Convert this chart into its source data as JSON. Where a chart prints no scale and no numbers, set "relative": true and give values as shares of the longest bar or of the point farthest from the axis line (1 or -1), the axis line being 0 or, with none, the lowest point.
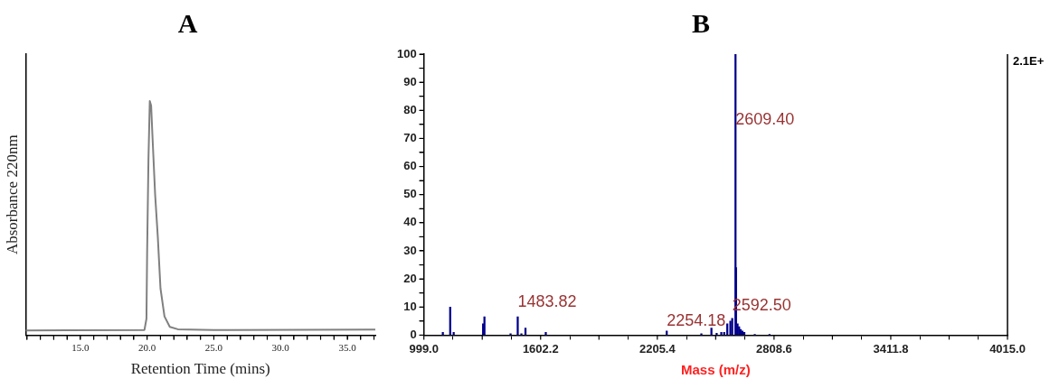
{
  "chart_data": [
    {
      "type": "line",
      "title": "A",
      "xlabel": "Retention Time (mins)",
      "ylabel": "Absorbance 220nm",
      "relative": true,
      "grid": false,
      "legend": false,
      "marker": "none",
      "xlim": [
        10.9,
        37.1
      ],
      "xticks": [
        {
          "value": 11,
          "label": null
        },
        {
          "value": 12,
          "label": null
        },
        {
          "value": 13,
          "label": null
        },
        {
          "value": 14,
          "label": null
        },
        {
          "value": 15,
          "label": "15.0"
        },
        {
          "value": 16,
          "label": null
        },
        {
          "value": 17,
          "label": null
        },
        {
          "value": 18,
          "label": null
        },
        {
          "value": 19,
          "label": null
        },
        {
          "value": 20,
          "label": "20.0"
        },
        {
          "value": 21,
          "label": null
        },
        {
          "value": 22,
          "label": null
        },
        {
          "value": 23,
          "label": null
        },
        {
          "value": 24,
          "label": null
        },
        {
          "value": 25,
          "label": "25.0"
        },
        {
          "value": 26,
          "label": null
        },
        {
          "value": 27,
          "label": null
        },
        {
          "value": 28,
          "label": null
        },
        {
          "value": 29,
          "label": null
        },
        {
          "value": 30,
          "label": "30.0"
        },
        {
          "value": 31,
          "label": null
        },
        {
          "value": 32,
          "label": null
        },
        {
          "value": 33,
          "label": null
        },
        {
          "value": 34,
          "label": null
        },
        {
          "value": 35,
          "label": "35.0"
        },
        {
          "value": 36,
          "label": null
        },
        {
          "value": 37,
          "label": null
        }
      ],
      "series": [
        {
          "color": "#808080",
          "x": [
            10.9,
            14,
            19.8,
            19.95,
            20.0,
            20.1,
            20.2,
            20.3,
            20.4,
            20.6,
            20.8,
            21.0,
            21.3,
            21.7,
            22.3,
            25,
            37.1
          ],
          "values": [
            0.02,
            0.021,
            0.022,
            0.07,
            0.35,
            0.75,
            1.0,
            0.98,
            0.85,
            0.6,
            0.42,
            0.2,
            0.08,
            0.035,
            0.025,
            0.022,
            0.024
          ]
        }
      ]
    },
    {
      "type": "bar",
      "title": "B",
      "xlabel": "Mass (m/z)",
      "grid": false,
      "legend": false,
      "xlim": [
        999.0,
        4015.0
      ],
      "xticks": [
        {
          "value": 999.0,
          "label": "999.0"
        },
        {
          "value": 1300.6,
          "label": null
        },
        {
          "value": 1602.2,
          "label": "1602.2"
        },
        {
          "value": 1903.8,
          "label": null
        },
        {
          "value": 2205.4,
          "label": "2205.4"
        },
        {
          "value": 2507.0,
          "label": null
        },
        {
          "value": 2808.6,
          "label": "2808.6"
        },
        {
          "value": 3110.2,
          "label": null
        },
        {
          "value": 3411.8,
          "label": "3411.8"
        },
        {
          "value": 3713.4,
          "label": null
        },
        {
          "value": 4015.0,
          "label": "4015.0"
        }
      ],
      "ylim": [
        0,
        100
      ],
      "yticks": [
        0,
        {
          "value": 5,
          "label": null
        },
        10,
        {
          "value": 15,
          "label": null
        },
        20,
        {
          "value": 25,
          "label": null
        },
        30,
        {
          "value": 35,
          "label": null
        },
        40,
        {
          "value": 45,
          "label": null
        },
        50,
        {
          "value": 55,
          "label": null
        },
        60,
        {
          "value": 65,
          "label": null
        },
        70,
        {
          "value": 75,
          "label": null
        },
        80,
        {
          "value": 85,
          "label": null
        },
        90,
        {
          "value": 95,
          "label": null
        },
        100
      ],
      "series": [
        {
          "color": "#00008b",
          "x": [
            1097,
            1135,
            1153,
            1305,
            1312,
            1447,
            1484,
            1503,
            1524,
            1629,
            2254,
            2433,
            2485,
            2512,
            2536,
            2551,
            2567,
            2583,
            2592.5,
            2609.4,
            2612,
            2620,
            2628,
            2636,
            2645,
            2655,
            2709,
            2785
          ],
          "values": [
            1,
            10,
            1,
            4,
            6.5,
            0.5,
            6.5,
            0.5,
            2.5,
            1,
            1.5,
            0.5,
            2.5,
            0.7,
            1,
            1,
            4,
            5,
            6,
            100,
            24,
            4,
            3,
            2,
            1.5,
            1,
            0.3,
            0.3
          ]
        }
      ],
      "annotations": [
        {
          "text": "1483.82",
          "x": 1484,
          "y": 8
        },
        {
          "text": "2254.18",
          "x": 2254,
          "y": 1.5
        },
        {
          "text": "2609.40",
          "x": 2609.4,
          "y": 73
        },
        {
          "text": "2592.50",
          "x": 2592.5,
          "y": 7
        },
        "2.1E+"
      ]
    }
  ]
}
